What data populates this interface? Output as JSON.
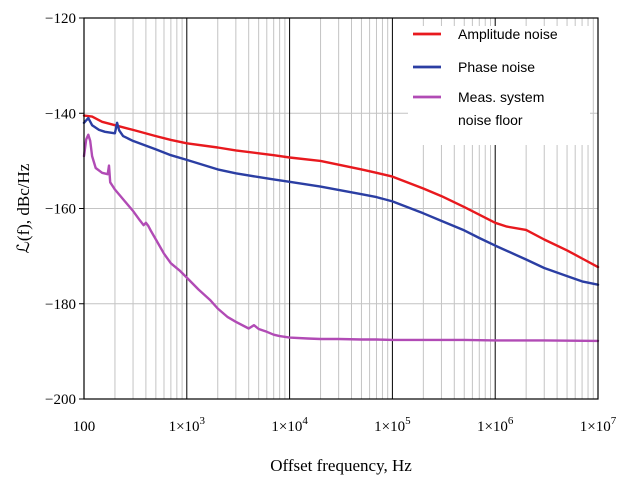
{
  "chart_data": {
    "type": "line",
    "xscale": "log",
    "xlim": [
      100,
      10000000
    ],
    "ylim": [
      -200,
      -120
    ],
    "xlabel": "Offset frequency, Hz",
    "ylabel": "ℒ(f), dBc/Hz",
    "grid": true,
    "legend_position": "top-right",
    "y_ticks": [
      -120,
      -140,
      -160,
      -180,
      -200
    ],
    "y_tick_labels": [
      "−120",
      "−140",
      "−160",
      "−180",
      "−200"
    ],
    "x_ticks": [
      100,
      1000,
      10000,
      100000,
      1000000,
      10000000
    ],
    "x_tick_labels": [
      {
        "base": "100",
        "exp": ""
      },
      {
        "base": "1×10",
        "exp": "3"
      },
      {
        "base": "1×10",
        "exp": "4"
      },
      {
        "base": "1×10",
        "exp": "5"
      },
      {
        "base": "1×10",
        "exp": "6"
      },
      {
        "base": "1×10",
        "exp": "7"
      }
    ],
    "series": [
      {
        "name": "Amplitude noise",
        "color": "#e8191e",
        "x": [
          100,
          120,
          150,
          200,
          300,
          500,
          700,
          1000,
          2000,
          3000,
          5000,
          7000,
          10000,
          20000,
          30000,
          50000,
          70000,
          100000,
          200000,
          300000,
          500000,
          700000,
          1000000,
          1300000,
          2000000,
          3000000,
          5000000,
          7000000,
          10000000
        ],
        "y": [
          -140.5,
          -140.7,
          -141.8,
          -142.5,
          -143.5,
          -144.8,
          -145.6,
          -146.3,
          -147.2,
          -147.8,
          -148.4,
          -148.8,
          -149.3,
          -150.0,
          -150.8,
          -151.8,
          -152.5,
          -153.3,
          -155.8,
          -157.4,
          -159.7,
          -161.3,
          -163.0,
          -163.8,
          -164.5,
          -166.5,
          -168.8,
          -170.5,
          -172.3
        ]
      },
      {
        "name": "Phase noise",
        "color": "#2b3ea3",
        "x": [
          100,
          110,
          120,
          140,
          160,
          200,
          210,
          220,
          240,
          300,
          500,
          700,
          1000,
          2000,
          3000,
          5000,
          7000,
          10000,
          20000,
          30000,
          50000,
          70000,
          100000,
          200000,
          300000,
          500000,
          700000,
          1000000,
          2000000,
          3000000,
          5000000,
          7000000,
          10000000
        ],
        "y": [
          -142.0,
          -141.0,
          -142.5,
          -143.5,
          -143.9,
          -144.2,
          -142.0,
          -143.6,
          -144.8,
          -145.8,
          -147.6,
          -148.8,
          -149.8,
          -151.8,
          -152.6,
          -153.4,
          -153.9,
          -154.4,
          -155.4,
          -156.1,
          -157.0,
          -157.6,
          -158.5,
          -161.0,
          -162.6,
          -164.6,
          -166.2,
          -167.8,
          -170.7,
          -172.5,
          -174.2,
          -175.3,
          -176.0
        ]
      },
      {
        "name": "Meas. system noise floor",
        "color": "#b14bb5",
        "x": [
          100,
          105,
          110,
          115,
          120,
          130,
          150,
          170,
          175,
          180,
          200,
          250,
          300,
          350,
          380,
          400,
          420,
          450,
          500,
          600,
          700,
          850,
          1000,
          1300,
          1700,
          2000,
          2500,
          3000,
          4000,
          4500,
          5000,
          6000,
          7000,
          8000,
          10000,
          15000,
          20000,
          30000,
          50000,
          70000,
          100000,
          200000,
          300000,
          500000,
          1000000,
          3000000,
          10000000
        ],
        "y": [
          -149.0,
          -145.5,
          -144.5,
          -145.8,
          -149.0,
          -151.5,
          -152.5,
          -152.8,
          -151.0,
          -154.5,
          -156.0,
          -158.5,
          -160.5,
          -162.5,
          -163.5,
          -163.0,
          -163.6,
          -164.8,
          -166.5,
          -169.5,
          -171.5,
          -173.0,
          -174.5,
          -177.0,
          -179.3,
          -181.0,
          -182.8,
          -183.8,
          -185.2,
          -184.5,
          -185.3,
          -185.9,
          -186.5,
          -186.8,
          -187.1,
          -187.3,
          -187.4,
          -187.4,
          -187.5,
          -187.5,
          -187.6,
          -187.6,
          -187.6,
          -187.6,
          -187.7,
          -187.7,
          -187.8
        ]
      }
    ],
    "legend_entries": [
      {
        "lines": [
          "Amplitude noise"
        ],
        "color": "#e8191e"
      },
      {
        "lines": [
          "Phase noise"
        ],
        "color": "#2b3ea3"
      },
      {
        "lines": [
          "Meas. system",
          "noise floor"
        ],
        "color": "#b14bb5"
      }
    ]
  }
}
